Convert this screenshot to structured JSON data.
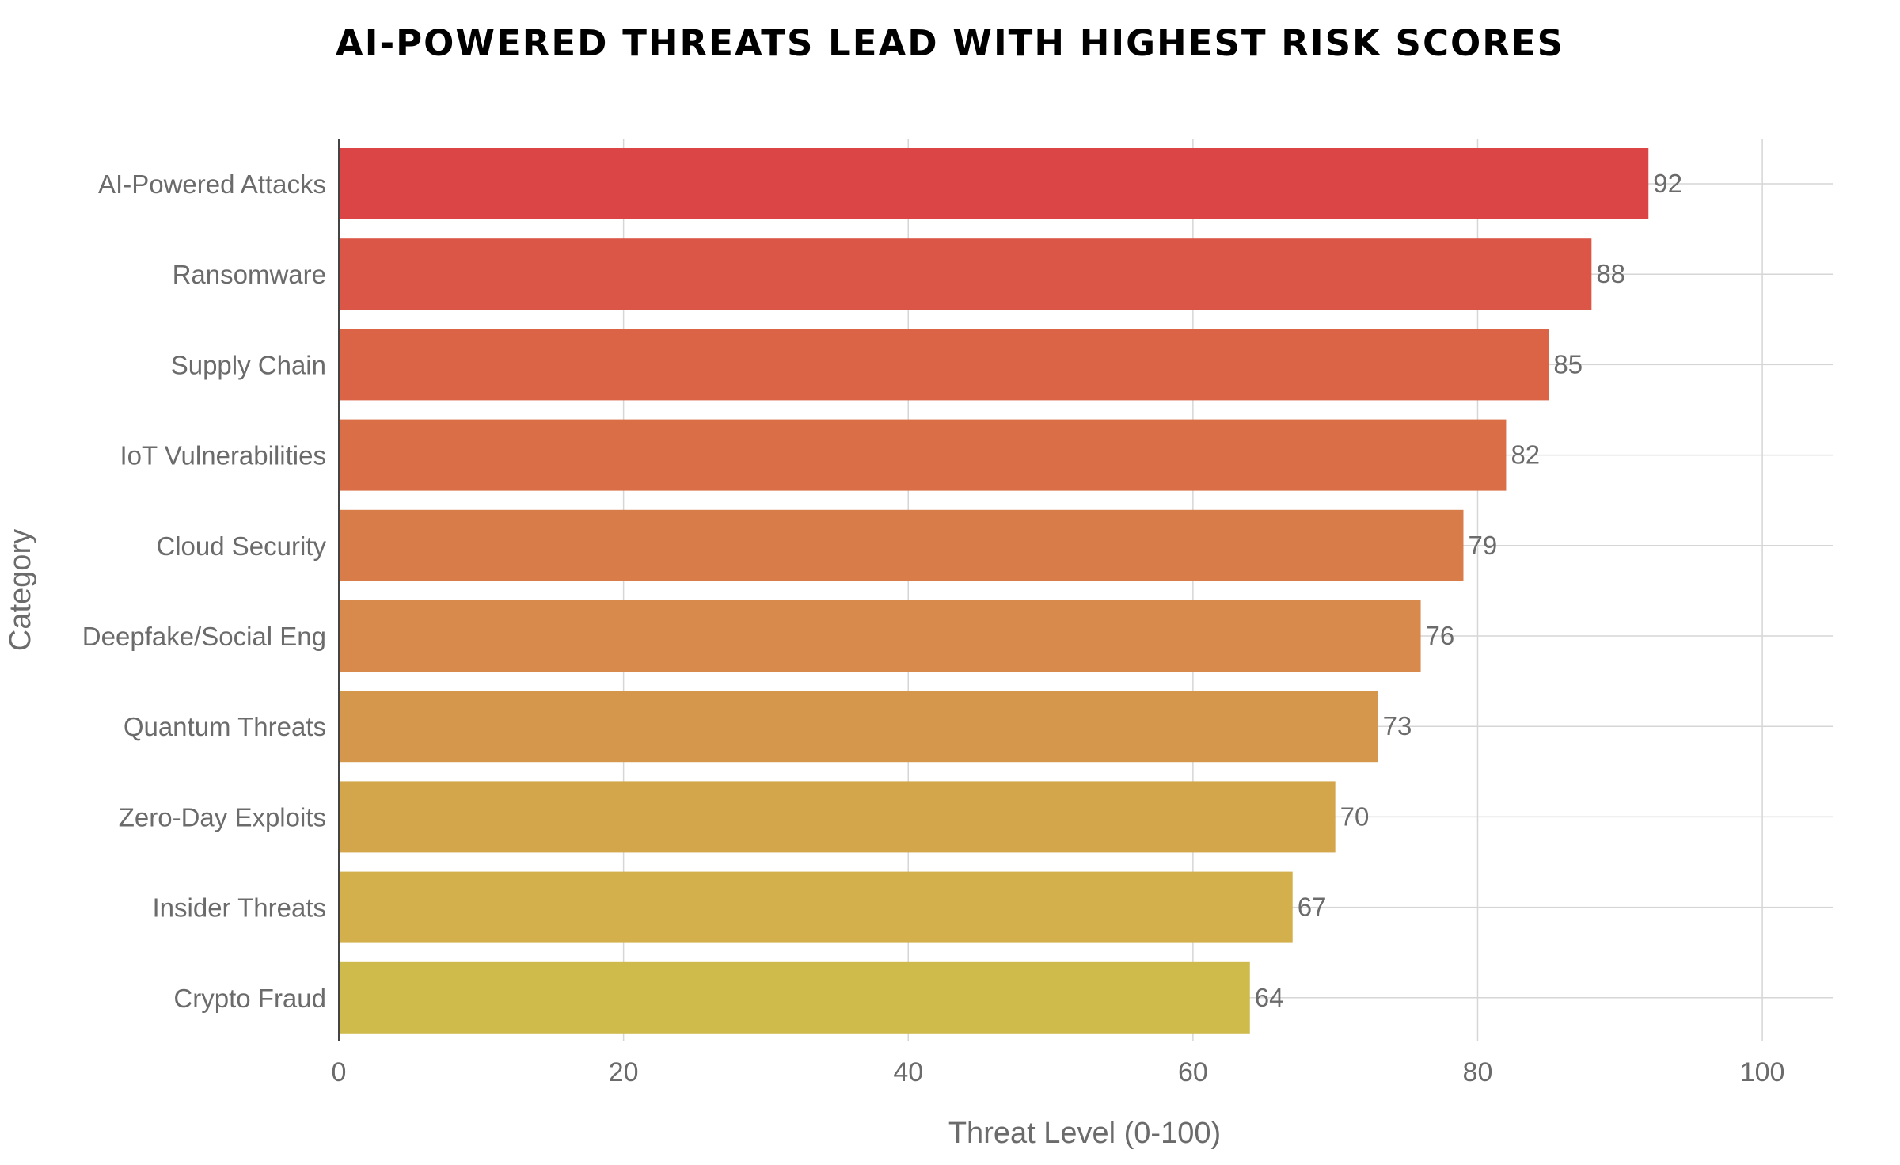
{
  "chart_data": {
    "type": "bar",
    "orientation": "horizontal",
    "title": "AI-POWERED THREATS LEAD WITH HIGHEST RISK SCORES",
    "xlabel": "Threat Level (0-100)",
    "ylabel": "Category",
    "xlim": [
      0,
      105
    ],
    "xticks": [
      0,
      20,
      40,
      60,
      80,
      100
    ],
    "grid": true,
    "categories": [
      "AI-Powered Attacks",
      "Ransomware",
      "Supply Chain",
      "IoT Vulnerabilities",
      "Cloud Security",
      "Deepfake/Social Eng",
      "Quantum Threats",
      "Zero-Day Exploits",
      "Insider Threats",
      "Crypto Fraud"
    ],
    "values": [
      92,
      88,
      85,
      82,
      79,
      76,
      73,
      70,
      67,
      64
    ],
    "colors": [
      "#DB4546",
      "#DB5646",
      "#DB6346",
      "#DA6F47",
      "#D87D4A",
      "#D78A4B",
      "#D5974B",
      "#D3A64C",
      "#D3B04C",
      "#CFBB4C"
    ]
  }
}
